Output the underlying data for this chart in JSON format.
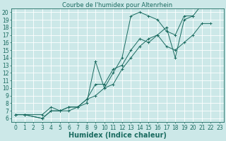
{
  "title": "Courbe de l'humidex pour Altenrhein",
  "xlabel": "Humidex (Indice chaleur)",
  "bg_color": "#cce8e8",
  "grid_color": "#ffffff",
  "line_color": "#1a6b60",
  "marker": "+",
  "xlim": [
    -0.5,
    23.5
  ],
  "ylim": [
    5.5,
    20.5
  ],
  "xticks": [
    0,
    1,
    2,
    3,
    4,
    5,
    6,
    7,
    8,
    9,
    10,
    11,
    12,
    13,
    14,
    15,
    16,
    17,
    18,
    19,
    20,
    21,
    22,
    23
  ],
  "yticks": [
    6,
    7,
    8,
    9,
    10,
    11,
    12,
    13,
    14,
    15,
    16,
    17,
    18,
    19,
    20
  ],
  "lines": [
    [
      [
        0,
        6.5
      ],
      [
        1,
        6.5
      ],
      [
        3,
        6.5
      ],
      [
        4,
        7.5
      ],
      [
        5,
        7
      ],
      [
        6,
        7.5
      ],
      [
        7,
        7.5
      ],
      [
        8,
        8.5
      ],
      [
        9,
        10.5
      ],
      [
        10,
        10.5
      ],
      [
        11,
        12.5
      ],
      [
        12,
        13
      ],
      [
        13,
        15
      ],
      [
        14,
        16.5
      ],
      [
        15,
        16
      ],
      [
        16,
        17
      ],
      [
        17,
        15.5
      ],
      [
        18,
        15
      ],
      [
        19,
        16
      ],
      [
        20,
        17
      ],
      [
        21,
        18.5
      ],
      [
        22,
        18.5
      ]
    ],
    [
      [
        0,
        6.5
      ],
      [
        1,
        6.5
      ],
      [
        3,
        6
      ],
      [
        4,
        7
      ],
      [
        5,
        7
      ],
      [
        6,
        7
      ],
      [
        7,
        7.5
      ],
      [
        8,
        8.5
      ],
      [
        9,
        9
      ],
      [
        10,
        10
      ],
      [
        11,
        12
      ],
      [
        12,
        14
      ],
      [
        13,
        19.5
      ],
      [
        14,
        20
      ],
      [
        15,
        19.5
      ],
      [
        16,
        19
      ],
      [
        17,
        17.5
      ],
      [
        18,
        17
      ],
      [
        19,
        19.5
      ],
      [
        20,
        19.5
      ]
    ],
    [
      [
        0,
        6.5
      ],
      [
        1,
        6.5
      ],
      [
        3,
        6
      ],
      [
        4,
        7
      ],
      [
        5,
        7
      ],
      [
        6,
        7.5
      ],
      [
        7,
        7.5
      ],
      [
        8,
        8
      ],
      [
        9,
        13.5
      ],
      [
        10,
        10
      ],
      [
        11,
        10.5
      ],
      [
        12,
        12.5
      ],
      [
        13,
        14
      ],
      [
        14,
        15.5
      ],
      [
        15,
        16.5
      ],
      [
        16,
        17
      ],
      [
        17,
        18
      ],
      [
        18,
        14
      ],
      [
        19,
        19
      ],
      [
        20,
        19.5
      ],
      [
        21,
        21
      ],
      [
        22,
        21
      ]
    ]
  ],
  "tick_fontsize": 5.5,
  "label_fontsize": 7,
  "title_fontsize": 6
}
